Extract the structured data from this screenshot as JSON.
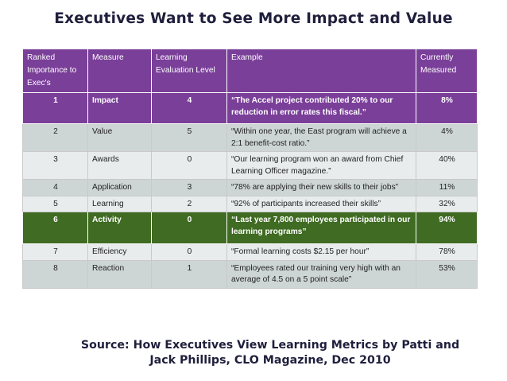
{
  "title": "Executives Want to See More Impact and Value",
  "headers": [
    "Ranked Importance to Exec's",
    "Measure",
    "Learning Evaluation Level",
    "Example",
    "Currently Measured"
  ],
  "rows": [
    {
      "rank": "1",
      "measure": "Impact",
      "level": "4",
      "example": "“The Accel project contributed 20% to our reduction in error rates this fiscal.”",
      "measured": "8%"
    },
    {
      "rank": "2",
      "measure": "Value",
      "level": "5",
      "example": "“Within one year, the East program will achieve a 2:1 benefit-cost ratio.”",
      "measured": "4%"
    },
    {
      "rank": "3",
      "measure": "Awards",
      "level": "0",
      "example": "“Our learning program won an award from Chief Learning Officer magazine.”",
      "measured": "40%"
    },
    {
      "rank": "4",
      "measure": "Application",
      "level": "3",
      "example": "“78% are applying their new skills to their jobs”",
      "measured": "11%"
    },
    {
      "rank": "5",
      "measure": "Learning",
      "level": "2",
      "example": "“92% of participants  increased their skills”",
      "measured": "32%"
    },
    {
      "rank": "6",
      "measure": "Activity",
      "level": "0",
      "example": "“Last year 7,800 employees participated in our  learning programs”",
      "measured": "94%"
    },
    {
      "rank": "7",
      "measure": "Efficiency",
      "level": "0",
      "example": "“Formal learning costs $2.15 per hour”",
      "measured": "78%"
    },
    {
      "rank": "8",
      "measure": "Reaction",
      "level": "1",
      "example": "“Employees rated our training very high with an average of 4.5 on a 5 point scale”",
      "measured": "53%"
    }
  ],
  "source_line1": "Source: How Executives View Learning Metrics by Patti and",
  "source_line2": "Jack Phillips, CLO Magazine, Dec 2010"
}
